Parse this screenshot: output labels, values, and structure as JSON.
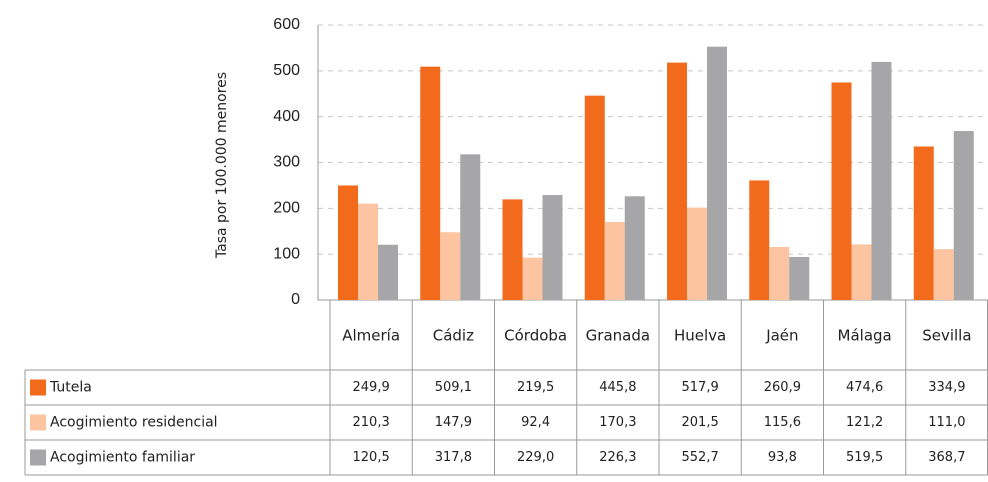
{
  "chart_data": {
    "type": "bar",
    "y_label": "Tasa por 100.000 menores",
    "categories": [
      "Almería",
      "Cádiz",
      "Córdoba",
      "Granada",
      "Huelva",
      "Jaén",
      "Málaga",
      "Sevilla"
    ],
    "series": [
      {
        "name": "Tutela",
        "color": "#f26a1b",
        "values": [
          249.9,
          509.1,
          219.5,
          445.8,
          517.9,
          260.9,
          474.6,
          334.9
        ],
        "value_labels": [
          "249,9",
          "509,1",
          "219,5",
          "445,8",
          "517,9",
          "260,9",
          "474,6",
          "334,9"
        ]
      },
      {
        "name": "Acogimiento residencial",
        "color": "#fcc4a0",
        "values": [
          210.3,
          147.9,
          92.4,
          170.3,
          201.5,
          115.6,
          121.2,
          111.0
        ],
        "value_labels": [
          "210,3",
          "147,9",
          "92,4",
          "170,3",
          "201,5",
          "115,6",
          "121,2",
          "111,0"
        ]
      },
      {
        "name": "Acogimiento familiar",
        "color": "#a6a6a8",
        "values": [
          120.5,
          317.8,
          229.0,
          226.3,
          552.7,
          93.8,
          519.5,
          368.7
        ],
        "value_labels": [
          "120,5",
          "317,8",
          "229,0",
          "226,3",
          "552,7",
          "93,8",
          "519,5",
          "368,7"
        ]
      }
    ],
    "ylim": [
      0,
      600
    ],
    "yticks": [
      0,
      100,
      200,
      300,
      400,
      500,
      600
    ],
    "grid": true
  }
}
